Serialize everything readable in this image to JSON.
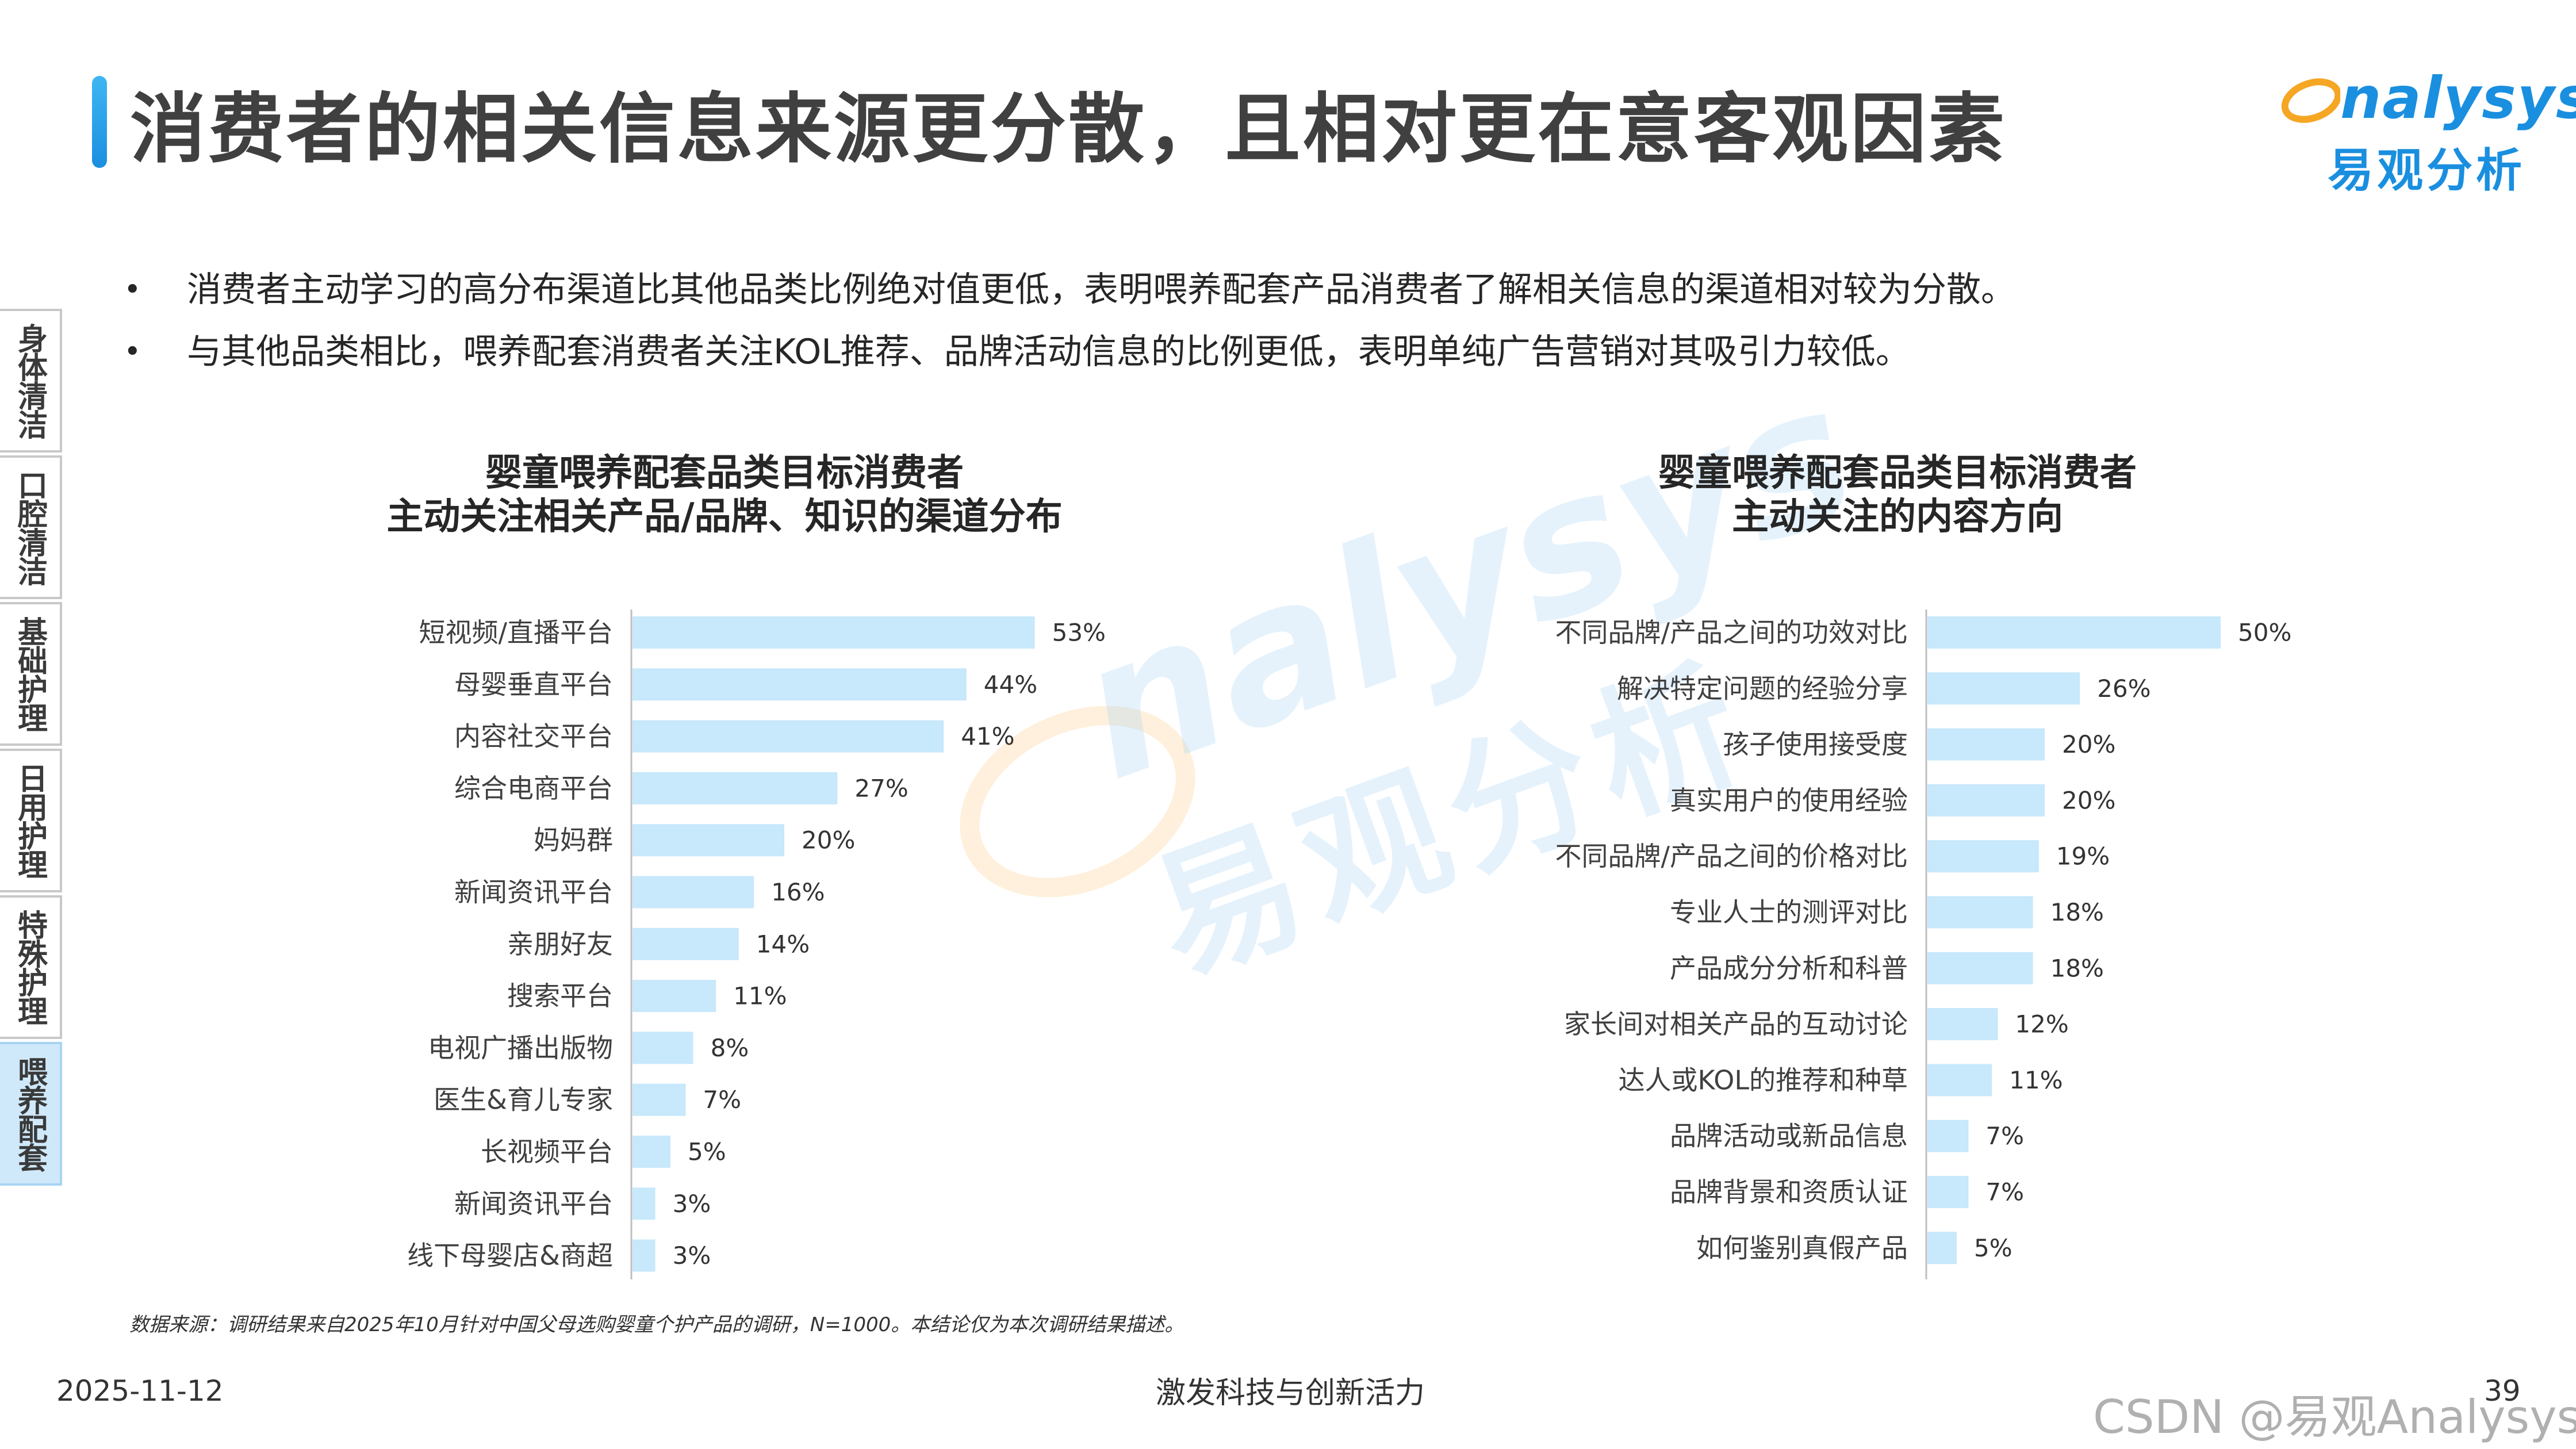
{
  "header": {
    "title": "消费者的相关信息来源更分散，且相对更在意客观因素",
    "logo_word": "nalysys",
    "logo_cn": "易观分析"
  },
  "bullets": [
    "消费者主动学习的高分布渠道比其他品类比例绝对值更低，表明喂养配套产品消费者了解相关信息的渠道相对较为分散。",
    "与其他品类相比，喂养配套消费者关注KOL推荐、品牌活动信息的比例更低，表明单纯广告营销对其吸引力较低。"
  ],
  "side_tabs": [
    {
      "label": "身体清洁",
      "active": false
    },
    {
      "label": "口腔清洁",
      "active": false
    },
    {
      "label": "基础护理",
      "active": false
    },
    {
      "label": "日用护理",
      "active": false
    },
    {
      "label": "特殊护理",
      "active": false
    },
    {
      "label": "喂养配套",
      "active": true
    }
  ],
  "watermark": {
    "word": "nalysys",
    "cn": "易观分析"
  },
  "chart_data": [
    {
      "type": "bar",
      "orientation": "horizontal",
      "title_line1": "婴童喂养配套品类目标消费者",
      "title_line2": "主动关注相关产品/品牌、知识的渠道分布",
      "categories": [
        "短视频/直播平台",
        "母婴垂直平台",
        "内容社交平台",
        "综合电商平台",
        "妈妈群",
        "新闻资讯平台",
        "亲朋好友",
        "搜索平台",
        "电视广播出版物",
        "医生&育儿专家",
        "长视频平台",
        "新闻资讯平台",
        "线下母婴店&商超"
      ],
      "values": [
        53,
        44,
        41,
        27,
        20,
        16,
        14,
        11,
        8,
        7,
        5,
        3,
        3
      ],
      "labels": [
        "53%",
        "44%",
        "41%",
        "27%",
        "20%",
        "16%",
        "14%",
        "11%",
        "8%",
        "7%",
        "5%",
        "3%",
        "3%"
      ],
      "bar_color": "#c8e8fb",
      "axis_color": "#bfbfbf"
    },
    {
      "type": "bar",
      "orientation": "horizontal",
      "title_line1": "婴童喂养配套品类目标消费者",
      "title_line2": "主动关注的内容方向",
      "categories": [
        "不同品牌/产品之间的功效对比",
        "解决特定问题的经验分享",
        "孩子使用接受度",
        "真实用户的使用经验",
        "不同品牌/产品之间的价格对比",
        "专业人士的测评对比",
        "产品成分分析和科普",
        "家长间对相关产品的互动讨论",
        "达人或KOL的推荐和种草",
        "品牌活动或新品信息",
        "品牌背景和资质认证",
        "如何鉴别真假产品"
      ],
      "values": [
        50,
        26,
        20,
        20,
        19,
        18,
        18,
        12,
        11,
        7,
        7,
        5
      ],
      "labels": [
        "50%",
        "26%",
        "20%",
        "20%",
        "19%",
        "18%",
        "18%",
        "12%",
        "11%",
        "7%",
        "7%",
        "5%"
      ],
      "bar_color": "#c8e8fb",
      "axis_color": "#bfbfbf"
    }
  ],
  "footer": {
    "source": "数据来源：调研结果来自2025年10月针对中国父母选购婴童个护产品的调研，N=1000。本结论仅为本次调研结果描述。",
    "date": "2025-11-12",
    "slogan": "激发科技与创新活力",
    "page": "39",
    "csdn": "CSDN @易观Analysys"
  }
}
